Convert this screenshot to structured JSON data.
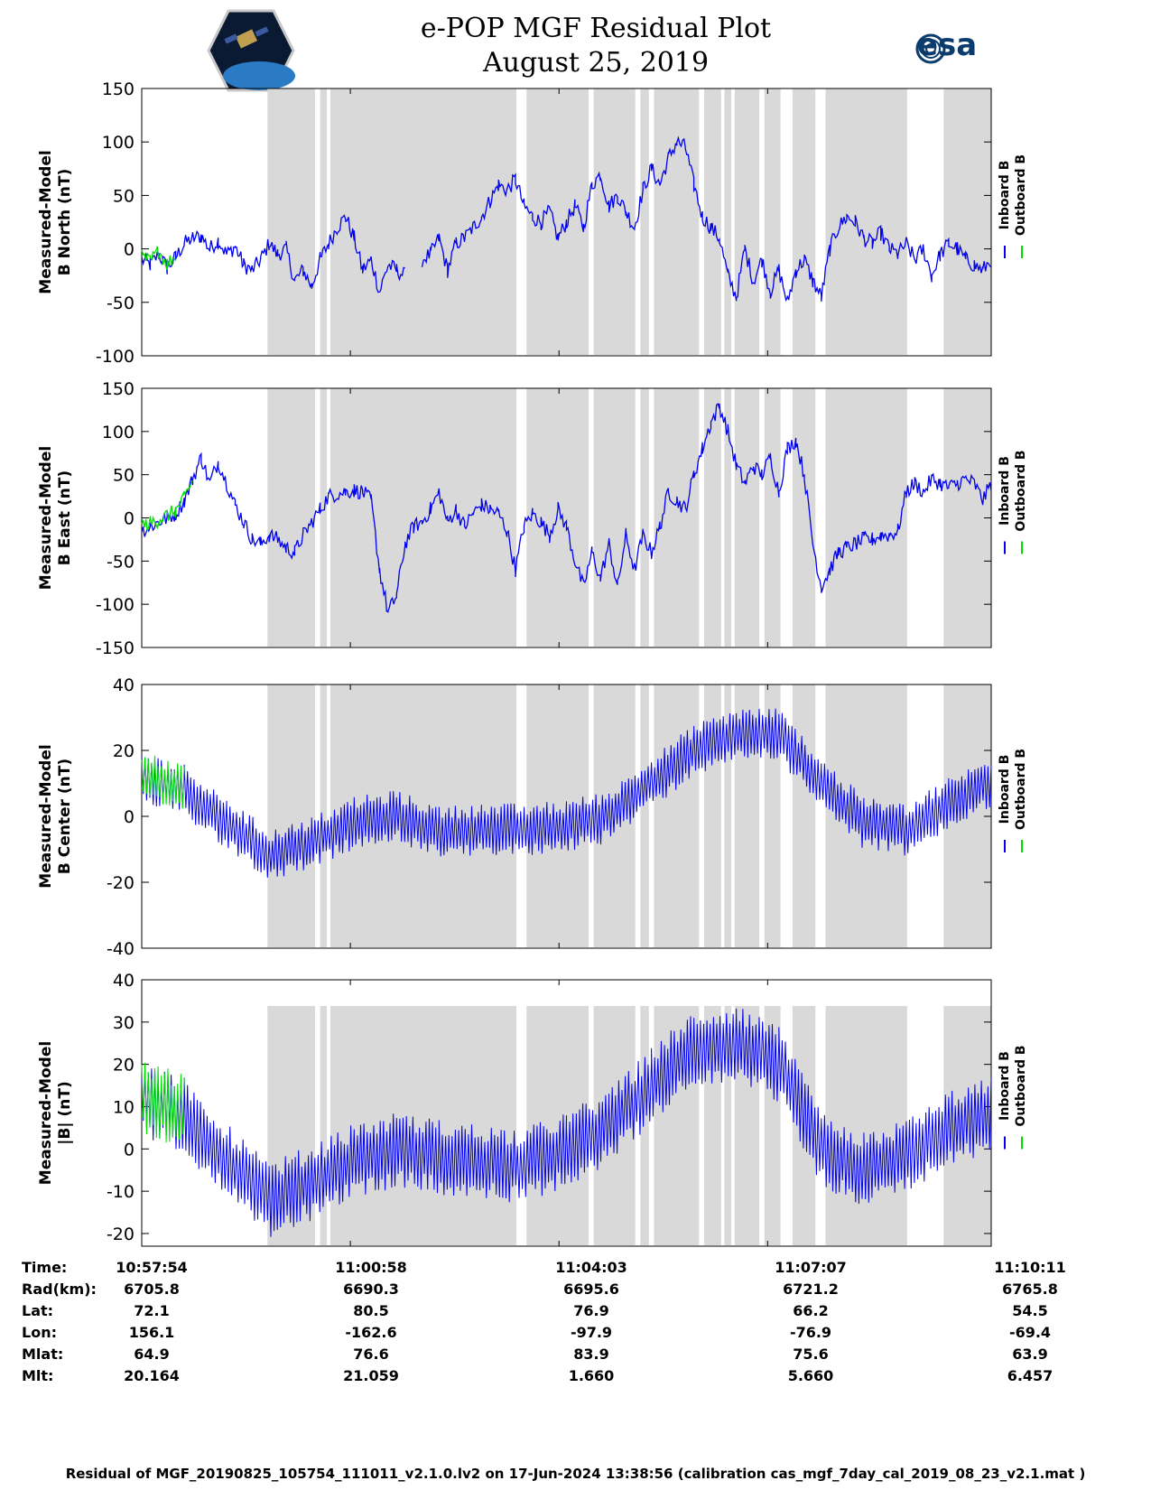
{
  "header": {
    "title": "e-POP MGF Residual Plot",
    "date": "August 25, 2019",
    "logo_left": "cassiope-satellite-logo",
    "logo_right_text": "esa"
  },
  "colors": {
    "inboard": "#0000ee",
    "outboard": "#00dd00",
    "shade": "#d9d9d9"
  },
  "legend": {
    "inboard": "Inboard B",
    "outboard": "Outboard B"
  },
  "time_ticks": [
    "10:57:54",
    "11:00:58",
    "11:04:03",
    "11:07:07",
    "11:10:11"
  ],
  "shade_intervals": [
    [
      0.148,
      0.204
    ],
    [
      0.21,
      0.218
    ],
    [
      0.222,
      0.441
    ],
    [
      0.453,
      0.526
    ],
    [
      0.532,
      0.581
    ],
    [
      0.587,
      0.597
    ],
    [
      0.603,
      0.656
    ],
    [
      0.662,
      0.682
    ],
    [
      0.686,
      0.694
    ],
    [
      0.698,
      0.727
    ],
    [
      0.733,
      0.752
    ],
    [
      0.766,
      0.793
    ],
    [
      0.805,
      0.901
    ],
    [
      0.944,
      1.0
    ]
  ],
  "info": {
    "labels": [
      "Time:",
      "Rad(km):",
      "Lat:",
      "Lon:",
      "Mlat:",
      "Mlt:"
    ],
    "columns": [
      [
        "10:57:54",
        "6705.8",
        "72.1",
        "156.1",
        "64.9",
        "20.164"
      ],
      [
        "11:00:58",
        "6690.3",
        "80.5",
        "-162.6",
        "76.6",
        "21.059"
      ],
      [
        "11:04:03",
        "6695.6",
        "76.9",
        "-97.9",
        "83.9",
        "1.660"
      ],
      [
        "11:07:07",
        "6721.2",
        "66.2",
        "-76.9",
        "75.6",
        "5.660"
      ],
      [
        "11:10:11",
        "6765.8",
        "54.5",
        "-69.4",
        "63.9",
        "6.457"
      ]
    ]
  },
  "footer": "Residual of MGF_20190825_105754_111011_v2.1.0.lv2 on 17-Jun-2024 13:38:56 (calibration cas_mgf_7day_cal_2019_08_23_v2.1.mat )",
  "chart_data": [
    {
      "type": "line",
      "title": "B North",
      "ylabel": [
        "Measured-Model",
        "B North (nT)"
      ],
      "ylim": [
        -100,
        150
      ],
      "yticks": [
        150,
        100,
        50,
        0,
        -50,
        -100
      ],
      "x": [
        0,
        0.01,
        0.02,
        0.03,
        0.04,
        0.05,
        0.06,
        0.07,
        0.08,
        0.09,
        0.1,
        0.11,
        0.12,
        0.13,
        0.14,
        0.15,
        0.16,
        0.17,
        0.18,
        0.19,
        0.2,
        0.21,
        0.22,
        0.23,
        0.24,
        0.25,
        0.26,
        0.27,
        0.28,
        0.29,
        0.3,
        0.31,
        0.32,
        0.33,
        0.34,
        0.35,
        0.36,
        0.37,
        0.38,
        0.39,
        0.4,
        0.41,
        0.42,
        0.43,
        0.44,
        0.45,
        0.46,
        0.47,
        0.48,
        0.49,
        0.5,
        0.51,
        0.52,
        0.53,
        0.54,
        0.55,
        0.56,
        0.57,
        0.58,
        0.59,
        0.6,
        0.61,
        0.62,
        0.63,
        0.64,
        0.65,
        0.66,
        0.67,
        0.68,
        0.69,
        0.7,
        0.71,
        0.72,
        0.73,
        0.74,
        0.75,
        0.76,
        0.77,
        0.78,
        0.79,
        0.8,
        0.81,
        0.82,
        0.83,
        0.84,
        0.85,
        0.86,
        0.87,
        0.88,
        0.89,
        0.9,
        0.91,
        0.92,
        0.93,
        0.94,
        0.95,
        0.96,
        0.97,
        0.98,
        0.99,
        1.0
      ],
      "series": [
        {
          "name": "Inboard B",
          "values": [
            -10,
            -15,
            -5,
            -18,
            -8,
            5,
            10,
            12,
            0,
            8,
            -5,
            2,
            -15,
            -20,
            -10,
            5,
            -5,
            0,
            -30,
            -20,
            -35,
            -10,
            5,
            20,
            30,
            10,
            -20,
            -10,
            -40,
            -15,
            -20,
            -25,
            null,
            -10,
            -5,
            10,
            -20,
            5,
            10,
            20,
            30,
            45,
            60,
            55,
            65,
            40,
            30,
            25,
            35,
            10,
            25,
            40,
            20,
            60,
            70,
            40,
            50,
            35,
            20,
            55,
            75,
            60,
            85,
            100,
            95,
            60,
            30,
            20,
            10,
            -25,
            -45,
            0,
            -30,
            -10,
            -40,
            -20,
            -50,
            -20,
            -10,
            -30,
            -45,
            0,
            20,
            30,
            25,
            10,
            5,
            15,
            0,
            -5,
            5,
            -10,
            0,
            -25,
            -5,
            5,
            0,
            -10,
            -15,
            -20,
            -10
          ]
        },
        {
          "name": "Outboard B",
          "values": [
            -8,
            -12,
            -2,
            -14,
            -6,
            null,
            null,
            null,
            null,
            null,
            null,
            null,
            null,
            null,
            null,
            null,
            null,
            null,
            null,
            null,
            null,
            null,
            null,
            null,
            null,
            null,
            null,
            null,
            null,
            null,
            null,
            null,
            null,
            null,
            null,
            null,
            null,
            null,
            null,
            null,
            null,
            null,
            null,
            null,
            null,
            null,
            null,
            null,
            null,
            null,
            null,
            null,
            null,
            null,
            null,
            null,
            null,
            null,
            null,
            null,
            null,
            null,
            null,
            null,
            null,
            null,
            null,
            null,
            null,
            null,
            null,
            null,
            null,
            null,
            null,
            null,
            null,
            null,
            null,
            null,
            null,
            null,
            null,
            null,
            null,
            null,
            null,
            null,
            null,
            null,
            null,
            null,
            null,
            null,
            null,
            null,
            null,
            null,
            null,
            null,
            null
          ]
        }
      ]
    },
    {
      "type": "line",
      "title": "B East",
      "ylabel": [
        "Measured-Model",
        "B East (nT)"
      ],
      "ylim": [
        -150,
        150
      ],
      "yticks": [
        150,
        100,
        50,
        0,
        -50,
        -100,
        -150
      ],
      "x": [
        0,
        0.01,
        0.02,
        0.03,
        0.04,
        0.05,
        0.06,
        0.07,
        0.08,
        0.09,
        0.1,
        0.11,
        0.12,
        0.13,
        0.14,
        0.15,
        0.16,
        0.17,
        0.18,
        0.19,
        0.2,
        0.21,
        0.22,
        0.23,
        0.24,
        0.25,
        0.26,
        0.27,
        0.28,
        0.29,
        0.3,
        0.31,
        0.32,
        0.33,
        0.34,
        0.35,
        0.36,
        0.37,
        0.38,
        0.39,
        0.4,
        0.41,
        0.42,
        0.43,
        0.44,
        0.45,
        0.46,
        0.47,
        0.48,
        0.49,
        0.5,
        0.51,
        0.52,
        0.53,
        0.54,
        0.55,
        0.56,
        0.57,
        0.58,
        0.59,
        0.6,
        0.61,
        0.62,
        0.63,
        0.64,
        0.65,
        0.66,
        0.67,
        0.68,
        0.69,
        0.7,
        0.71,
        0.72,
        0.73,
        0.74,
        0.75,
        0.76,
        0.77,
        0.78,
        0.79,
        0.8,
        0.81,
        0.82,
        0.83,
        0.84,
        0.85,
        0.86,
        0.87,
        0.88,
        0.89,
        0.9,
        0.91,
        0.92,
        0.93,
        0.94,
        0.95,
        0.96,
        0.97,
        0.98,
        0.99,
        1.0
      ],
      "series": [
        {
          "name": "Inboard B",
          "values": [
            -15,
            -10,
            -5,
            0,
            5,
            20,
            45,
            70,
            40,
            65,
            40,
            15,
            -5,
            -25,
            -30,
            -20,
            -25,
            -35,
            -40,
            -20,
            -5,
            10,
            25,
            28,
            30,
            32,
            30,
            20,
            -60,
            -110,
            -90,
            -30,
            -10,
            -5,
            10,
            30,
            -5,
            10,
            -10,
            5,
            15,
            10,
            5,
            -15,
            -60,
            -10,
            5,
            -5,
            -20,
            10,
            -10,
            -50,
            -80,
            -40,
            -70,
            -30,
            -80,
            -20,
            -60,
            -20,
            -40,
            -10,
            30,
            20,
            10,
            50,
            80,
            110,
            130,
            100,
            60,
            40,
            60,
            50,
            70,
            30,
            80,
            90,
            50,
            -30,
            -80,
            -60,
            -40,
            -35,
            -30,
            -25,
            -25,
            -20,
            -20,
            -15,
            30,
            40,
            30,
            45,
            40,
            35,
            40,
            45,
            40,
            20,
            40
          ]
        },
        {
          "name": "Outboard B",
          "values": [
            -10,
            -6,
            -2,
            3,
            8,
            22,
            44,
            null,
            null,
            null,
            null,
            null,
            null,
            null,
            null,
            null,
            null,
            null,
            null,
            null,
            null,
            null,
            null,
            null,
            null,
            null,
            null,
            null,
            null,
            null,
            null,
            null,
            null,
            null,
            null,
            null,
            null,
            null,
            null,
            null,
            null,
            null,
            null,
            null,
            null,
            null,
            null,
            null,
            null,
            null,
            null,
            null,
            null,
            null,
            null,
            null,
            null,
            null,
            null,
            null,
            null,
            null,
            null,
            null,
            null,
            null,
            null,
            null,
            null,
            null,
            null,
            null,
            null,
            null,
            null,
            null,
            null,
            null,
            null,
            null,
            null,
            null,
            null,
            null,
            null,
            null,
            null,
            null,
            null,
            null,
            null,
            null,
            null,
            null,
            null,
            null,
            null,
            null,
            null,
            null,
            null
          ]
        }
      ]
    },
    {
      "type": "line",
      "title": "B Center",
      "ylabel": [
        "Measured-Model",
        "B Center (nT)"
      ],
      "ylim": [
        -40,
        40
      ],
      "yticks": [
        40,
        20,
        0,
        -20,
        -40
      ],
      "x": [
        0,
        0.05,
        0.1,
        0.15,
        0.2,
        0.25,
        0.3,
        0.35,
        0.4,
        0.45,
        0.5,
        0.55,
        0.6,
        0.65,
        0.7,
        0.75,
        0.8,
        0.85,
        0.9,
        0.95,
        1.0
      ],
      "amplitude": 8,
      "series": [
        {
          "name": "Inboard B",
          "values": [
            12,
            8,
            -2,
            -12,
            -8,
            -2,
            0,
            -5,
            -4,
            -4,
            -3,
            0,
            10,
            20,
            25,
            25,
            10,
            -2,
            -4,
            4,
            10
          ]
        },
        {
          "name": "Outboard B",
          "values": [
            12,
            8,
            null,
            null,
            null,
            null,
            null,
            null,
            null,
            null,
            null,
            null,
            null,
            null,
            null,
            null,
            null,
            null,
            null,
            null,
            null
          ]
        }
      ]
    },
    {
      "type": "line",
      "title": "|B|",
      "ylabel": [
        "Measured-Model",
        "|B| (nT)"
      ],
      "ylim": [
        -23,
        40
      ],
      "yticks": [
        40,
        30,
        20,
        10,
        0,
        -10,
        -20
      ],
      "x": [
        0,
        0.05,
        0.1,
        0.15,
        0.2,
        0.25,
        0.3,
        0.35,
        0.4,
        0.45,
        0.5,
        0.55,
        0.6,
        0.65,
        0.7,
        0.75,
        0.8,
        0.85,
        0.9,
        0.95,
        1.0
      ],
      "amplitude": 9,
      "series": [
        {
          "name": "Inboard B",
          "values": [
            12,
            8,
            -3,
            -12,
            -8,
            -3,
            0,
            -2,
            -3,
            -4,
            0,
            5,
            15,
            24,
            25,
            20,
            0,
            -5,
            -2,
            5,
            8
          ]
        },
        {
          "name": "Outboard B",
          "values": [
            12,
            9,
            null,
            null,
            null,
            null,
            null,
            null,
            null,
            null,
            null,
            null,
            null,
            null,
            null,
            null,
            null,
            null,
            null,
            null,
            null
          ]
        }
      ]
    }
  ]
}
